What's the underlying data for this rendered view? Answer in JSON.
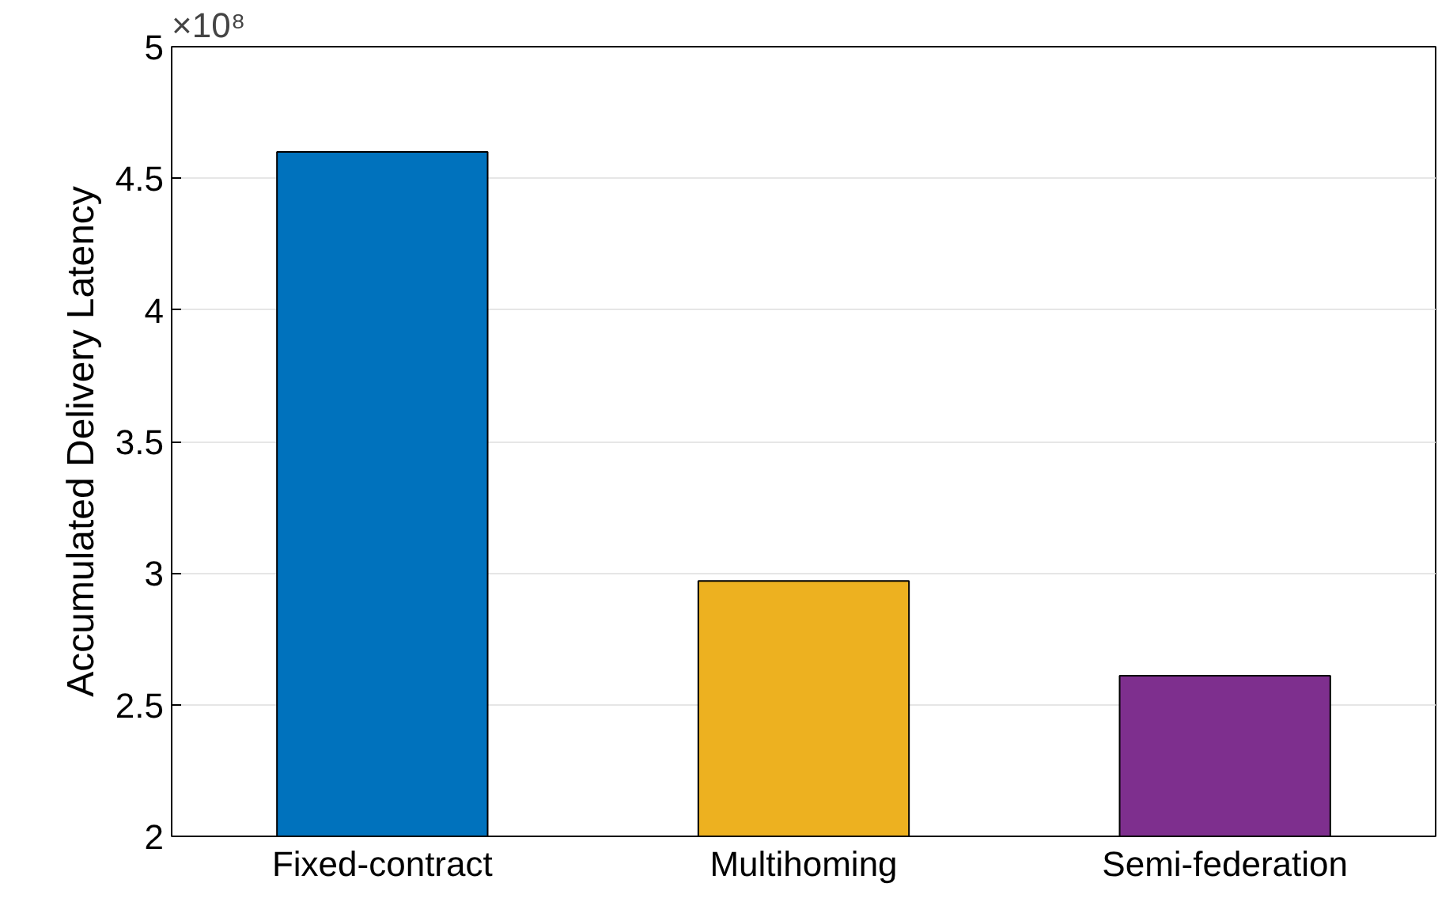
{
  "chart_data": {
    "type": "bar",
    "ylabel": "Accumulated Delivery Latency",
    "categories": [
      "Fixed-contract",
      "Multihoming",
      "Semi-federation"
    ],
    "values": [
      4.6,
      2.97,
      2.61
    ],
    "colors": [
      "#0072bd",
      "#edb120",
      "#7e2f8e"
    ],
    "ylim": [
      2,
      5
    ],
    "yticks": [
      2,
      2.5,
      3,
      3.5,
      4,
      4.5,
      5
    ],
    "grid": "y",
    "annotations": [
      "×10⁸"
    ]
  }
}
